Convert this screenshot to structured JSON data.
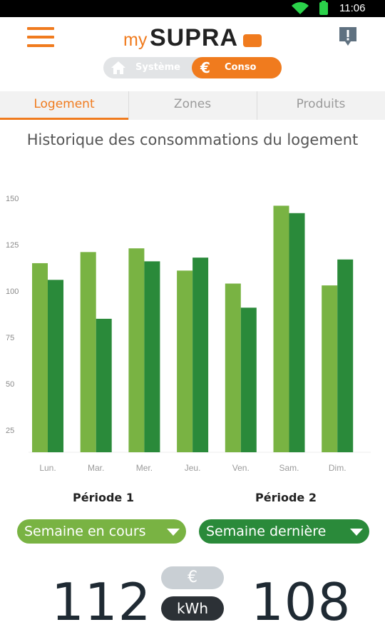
{
  "status_bar": {
    "time": "11:06"
  },
  "header": {
    "logo_my": "my",
    "logo_supra": "SUPRA"
  },
  "toggle": {
    "system_label": "Système",
    "conso_label": "Conso",
    "euro_symbol": "€"
  },
  "tabs": [
    {
      "label": "Logement",
      "active": true
    },
    {
      "label": "Zones",
      "active": false
    },
    {
      "label": "Produits",
      "active": false
    }
  ],
  "section_title": "Historique des consommations du logement",
  "chart_data": {
    "type": "bar",
    "categories": [
      "Lun.",
      "Mar.",
      "Mer.",
      "Jeu.",
      "Ven.",
      "Sam.",
      "Dim."
    ],
    "series": [
      {
        "values": [
          115,
          121,
          123,
          111,
          104,
          146,
          103
        ],
        "color": "#79b343"
      },
      {
        "values": [
          106,
          85,
          116,
          118,
          91,
          142,
          117
        ],
        "color": "#2a8a3a"
      }
    ],
    "yticks": [
      25,
      50,
      75,
      100,
      125,
      150
    ],
    "ylim": [
      13,
      155
    ],
    "grid": false
  },
  "periods": {
    "period1": {
      "label": "Période 1",
      "value": "Semaine en cours",
      "color": "#79b343"
    },
    "period2": {
      "label": "Période 2",
      "value": "Semaine dernière",
      "color": "#2a8a3a"
    }
  },
  "totals": {
    "period1": "112",
    "period2": "108"
  },
  "units": {
    "euro": "€",
    "kwh": "kWh",
    "active": "kWh"
  },
  "colors": {
    "accent": "#f07b1e",
    "text_dark": "#1f2a33"
  },
  "icons": {
    "menu": "hamburger-menu-icon",
    "alert": "alert-message-icon",
    "home": "home-icon",
    "wifi": "wifi-icon",
    "battery": "battery-icon"
  }
}
